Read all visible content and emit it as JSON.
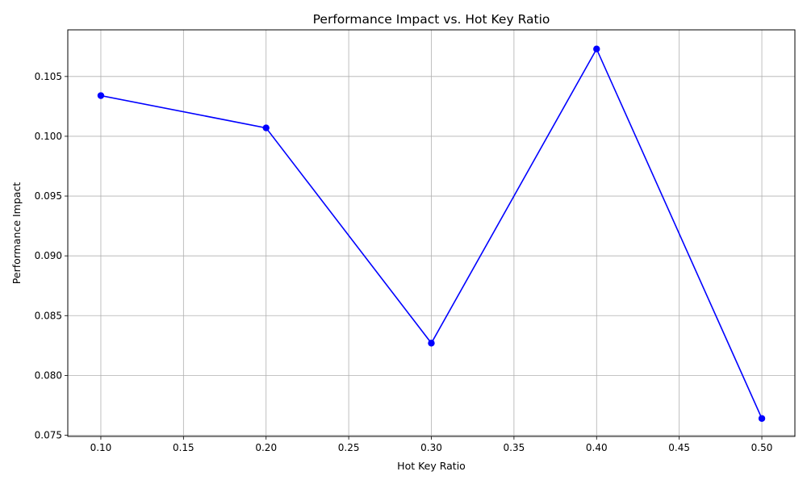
{
  "chart_data": {
    "type": "line",
    "title": "Performance Impact vs. Hot Key Ratio",
    "xlabel": "Hot Key Ratio",
    "ylabel": "Performance Impact",
    "xlim": [
      0.08,
      0.52
    ],
    "ylim": [
      0.0749,
      0.1089
    ],
    "x_ticks": [
      0.1,
      0.15,
      0.2,
      0.25,
      0.3,
      0.35,
      0.4,
      0.45,
      0.5
    ],
    "x_tick_labels": [
      "0.10",
      "0.15",
      "0.20",
      "0.25",
      "0.30",
      "0.35",
      "0.40",
      "0.45",
      "0.50"
    ],
    "y_ticks": [
      0.075,
      0.08,
      0.085,
      0.09,
      0.095,
      0.1,
      0.105
    ],
    "y_tick_labels": [
      "0.075",
      "0.080",
      "0.085",
      "0.090",
      "0.095",
      "0.100",
      "0.105"
    ],
    "grid": true,
    "series": [
      {
        "x": [
          0.1,
          0.2,
          0.3,
          0.4,
          0.5
        ],
        "values": [
          0.1034,
          0.1007,
          0.0827,
          0.1073,
          0.0764
        ],
        "color": "#0000ff",
        "marker": "circle"
      }
    ]
  }
}
